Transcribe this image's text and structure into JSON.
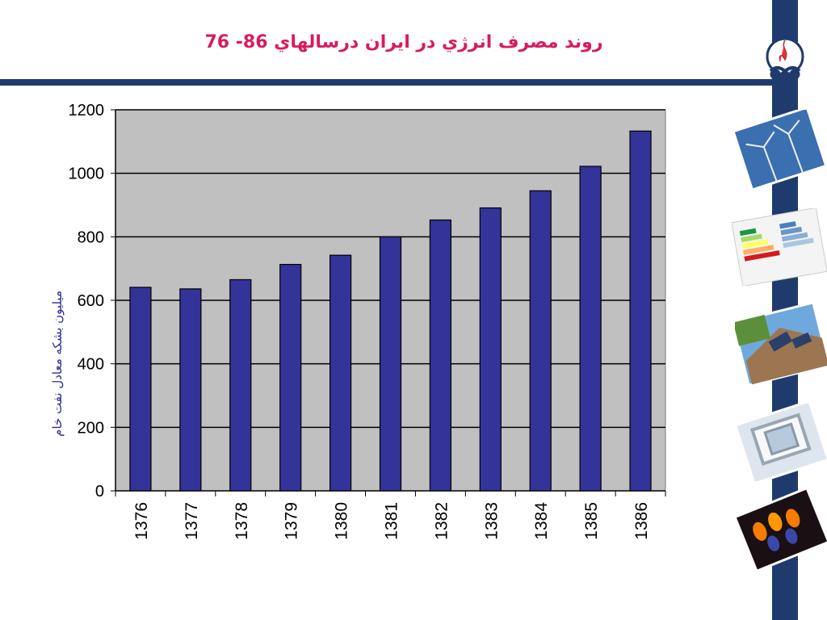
{
  "slide": {
    "title": "روند  مصرف انرژي در ايران درسالهاي 86- 76"
  },
  "colors": {
    "bar": "#333399",
    "plot_bg": "#c0c0c0",
    "title": "#d81b60",
    "frame": "#1f3b6e"
  },
  "side_images": [
    "wind-turbines-photo",
    "energy-label-photo",
    "solar-roof-photo",
    "window-frame-photo",
    "gas-flame-photo"
  ],
  "chart_data": {
    "type": "bar",
    "categories": [
      "1376",
      "1377",
      "1378",
      "1379",
      "1380",
      "1381",
      "1382",
      "1383",
      "1384",
      "1385",
      "1386"
    ],
    "series": [
      {
        "values": [
          641,
          636,
          665,
          713,
          742,
          800,
          853,
          891,
          945,
          1022,
          1133
        ]
      }
    ],
    "ylabel": "ميليون بشكه معادل نفت خام",
    "xlabel": "",
    "ylim": [
      0,
      1200
    ],
    "yticks": [
      0,
      200,
      400,
      600,
      800,
      1000,
      1200
    ],
    "grid": true,
    "legend": "none"
  }
}
